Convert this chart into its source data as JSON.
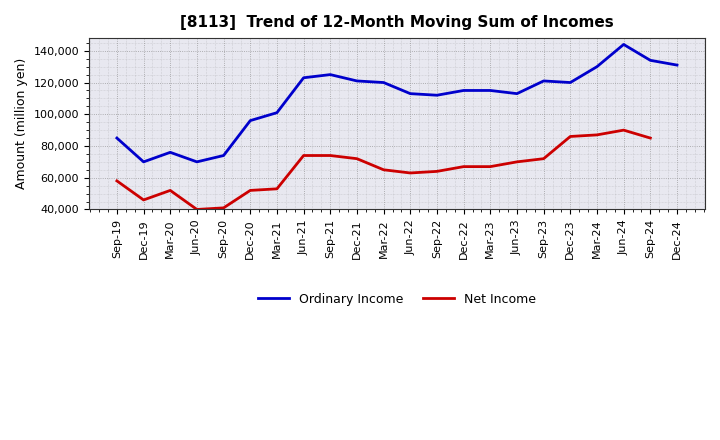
{
  "title": "[8113]  Trend of 12-Month Moving Sum of Incomes",
  "ylabel": "Amount (million yen)",
  "xlabels": [
    "Sep-19",
    "Dec-19",
    "Mar-20",
    "Jun-20",
    "Sep-20",
    "Dec-20",
    "Mar-21",
    "Jun-21",
    "Sep-21",
    "Dec-21",
    "Mar-22",
    "Jun-22",
    "Sep-22",
    "Dec-22",
    "Mar-23",
    "Jun-23",
    "Sep-23",
    "Dec-23",
    "Mar-24",
    "Jun-24",
    "Sep-24",
    "Dec-24"
  ],
  "ordinary_income": [
    85000,
    70000,
    76000,
    70000,
    74000,
    96000,
    101000,
    123000,
    125000,
    121000,
    120000,
    113000,
    112000,
    115000,
    115000,
    113000,
    121000,
    120000,
    130000,
    144000,
    134000,
    131000
  ],
  "net_income": [
    58000,
    46000,
    52000,
    40000,
    41000,
    52000,
    53000,
    74000,
    74000,
    72000,
    65000,
    63000,
    64000,
    67000,
    67000,
    70000,
    72000,
    86000,
    87000,
    90000,
    85000,
    null
  ],
  "ordinary_color": "#0000CC",
  "net_color": "#CC0000",
  "ylim_min": 40000,
  "ylim_max": 148000,
  "yticks": [
    40000,
    60000,
    80000,
    100000,
    120000,
    140000
  ],
  "background_color": "#FFFFFF",
  "plot_bg_color": "#E8E8F0",
  "grid_color": "#888888",
  "legend_labels": [
    "Ordinary Income",
    "Net Income"
  ],
  "title_fontsize": 11,
  "tick_fontsize": 8,
  "ylabel_fontsize": 9
}
